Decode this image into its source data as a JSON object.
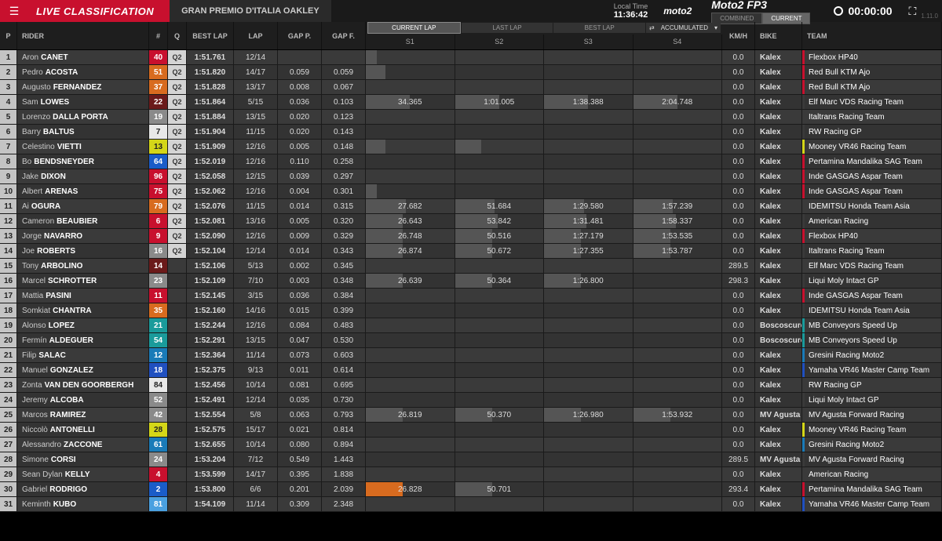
{
  "header": {
    "title": "LIVE CLASSIFICATION",
    "event": "GRAN PREMIO D'ITALIA OAKLEY",
    "local_time_label": "Local Time",
    "local_time": "11:36:42",
    "category_logo": "moto2",
    "session": "Moto2 FP3",
    "toggle": {
      "combined": "COMBINED",
      "current": "CURRENT"
    },
    "countdown": "00:00:00",
    "version": "1.11.0"
  },
  "columns": {
    "p": "P",
    "rider": "RIDER",
    "num": "#",
    "q": "Q",
    "bestlap": "BEST LAP",
    "lap": "LAP",
    "gapp": "GAP P.",
    "gapf": "GAP F.",
    "tabs": {
      "current": "CURRENT LAP",
      "last": "LAST LAP",
      "best": "BEST LAP"
    },
    "acc_label": "ACCUMULATED",
    "s1": "S1",
    "s2": "S2",
    "s3": "S3",
    "s4": "S4",
    "kmh": "Km/h",
    "bike": "BIKE",
    "team": "TEAM"
  },
  "num_colors": {
    "red": "#c8102e",
    "orange": "#d86b1f",
    "darkred": "#6b1a1a",
    "grey": "#8a8a8a",
    "white": "#e8e8e8",
    "yellow": "#d4d618",
    "blue": "#1a5cc8",
    "teal": "#1a9b9b",
    "tealblue": "#1a7bb8",
    "blue2": "#2050c0",
    "lightblue": "#4aa0e0"
  },
  "rows": [
    {
      "p": 1,
      "first": "Aron",
      "last": "CANET",
      "num": 40,
      "nc": "red",
      "q": "Q2",
      "best": "1:51.761",
      "lap": "12/14",
      "gp": "",
      "gf": "",
      "s": [
        {
          "b": 12
        },
        {
          "b": 0
        },
        {
          "b": 0
        },
        {
          "b": 0
        }
      ],
      "kmh": "0.0",
      "bike": "Kalex",
      "team": "Flexbox HP40",
      "tc": "#c8102e"
    },
    {
      "p": 2,
      "first": "Pedro",
      "last": "ACOSTA",
      "num": 51,
      "nc": "orange",
      "q": "Q2",
      "best": "1:51.820",
      "lap": "14/17",
      "gp": "0.059",
      "gf": "0.059",
      "s": [
        {
          "b": 22
        },
        {
          "b": 0
        },
        {
          "b": 0
        },
        {
          "b": 0
        }
      ],
      "kmh": "0.0",
      "bike": "Kalex",
      "team": "Red Bull KTM Ajo",
      "tc": "#c8102e"
    },
    {
      "p": 3,
      "first": "Augusto",
      "last": "FERNANDEZ",
      "num": 37,
      "nc": "orange",
      "q": "Q2",
      "best": "1:51.828",
      "lap": "13/17",
      "gp": "0.008",
      "gf": "0.067",
      "s": [
        {
          "b": 0
        },
        {
          "b": 0
        },
        {
          "b": 0
        },
        {
          "b": 0
        }
      ],
      "kmh": "0.0",
      "bike": "Kalex",
      "team": "Red Bull KTM Ajo",
      "tc": "#c8102e"
    },
    {
      "p": 4,
      "first": "Sam",
      "last": "LOWES",
      "num": 22,
      "nc": "darkred",
      "q": "Q2",
      "best": "1:51.864",
      "lap": "5/15",
      "gp": "0.036",
      "gf": "0.103",
      "s": [
        {
          "v": "34.365",
          "b": 50
        },
        {
          "v": "1:01.005",
          "b": 50
        },
        {
          "v": "1:38.388",
          "b": 50
        },
        {
          "v": "2:04.748",
          "b": 50
        }
      ],
      "kmh": "0.0",
      "bike": "Kalex",
      "team": "Elf Marc VDS Racing Team",
      "tc": "#3a3a3a"
    },
    {
      "p": 5,
      "first": "Lorenzo",
      "last": "DALLA PORTA",
      "num": 19,
      "nc": "grey",
      "q": "Q2",
      "best": "1:51.884",
      "lap": "13/15",
      "gp": "0.020",
      "gf": "0.123",
      "s": [
        {
          "b": 0
        },
        {
          "b": 0
        },
        {
          "b": 0
        },
        {
          "b": 0
        }
      ],
      "kmh": "0.0",
      "bike": "Kalex",
      "team": "Italtrans Racing Team",
      "tc": "#3a3a3a"
    },
    {
      "p": 6,
      "first": "Barry",
      "last": "BALTUS",
      "num": 7,
      "nc": "white",
      "numtext": "#222",
      "q": "Q2",
      "best": "1:51.904",
      "lap": "11/15",
      "gp": "0.020",
      "gf": "0.143",
      "s": [
        {
          "b": 0
        },
        {
          "b": 0
        },
        {
          "b": 0
        },
        {
          "b": 0
        }
      ],
      "kmh": "0.0",
      "bike": "Kalex",
      "team": "RW Racing GP",
      "tc": "#3a3a3a"
    },
    {
      "p": 7,
      "first": "Celestino",
      "last": "VIETTI",
      "num": 13,
      "nc": "yellow",
      "numtext": "#222",
      "q": "Q2",
      "best": "1:51.909",
      "lap": "12/16",
      "gp": "0.005",
      "gf": "0.148",
      "s": [
        {
          "b": 22
        },
        {
          "b": 30
        },
        {
          "b": 0
        },
        {
          "b": 0
        }
      ],
      "kmh": "0.0",
      "bike": "Kalex",
      "team": "Mooney VR46 Racing Team",
      "tc": "#d4d618"
    },
    {
      "p": 8,
      "first": "Bo",
      "last": "BENDSNEYDER",
      "num": 64,
      "nc": "blue",
      "q": "Q2",
      "best": "1:52.019",
      "lap": "12/16",
      "gp": "0.110",
      "gf": "0.258",
      "s": [
        {
          "b": 0
        },
        {
          "b": 0
        },
        {
          "b": 0
        },
        {
          "b": 0
        }
      ],
      "kmh": "0.0",
      "bike": "Kalex",
      "team": "Pertamina Mandalika SAG Team",
      "tc": "#c8102e"
    },
    {
      "p": 9,
      "first": "Jake",
      "last": "DIXON",
      "num": 96,
      "nc": "red",
      "q": "Q2",
      "best": "1:52.058",
      "lap": "12/15",
      "gp": "0.039",
      "gf": "0.297",
      "s": [
        {
          "b": 0
        },
        {
          "b": 0
        },
        {
          "b": 0
        },
        {
          "b": 0
        }
      ],
      "kmh": "0.0",
      "bike": "Kalex",
      "team": "Inde GASGAS Aspar Team",
      "tc": "#c8102e"
    },
    {
      "p": 10,
      "first": "Albert",
      "last": "ARENAS",
      "num": 75,
      "nc": "red",
      "q": "Q2",
      "best": "1:52.062",
      "lap": "12/16",
      "gp": "0.004",
      "gf": "0.301",
      "s": [
        {
          "b": 12
        },
        {
          "b": 0
        },
        {
          "b": 0
        },
        {
          "b": 0
        }
      ],
      "kmh": "0.0",
      "bike": "Kalex",
      "team": "Inde GASGAS Aspar Team",
      "tc": "#c8102e"
    },
    {
      "p": 11,
      "first": "Ai",
      "last": "OGURA",
      "num": 79,
      "nc": "orange",
      "q": "Q2",
      "best": "1:52.076",
      "lap": "11/15",
      "gp": "0.014",
      "gf": "0.315",
      "s": [
        {
          "v": "27.682",
          "b": 45
        },
        {
          "v": "51.684",
          "b": 45
        },
        {
          "v": "1:29.580",
          "b": 45
        },
        {
          "v": "1:57.239",
          "b": 45
        }
      ],
      "kmh": "0.0",
      "bike": "Kalex",
      "team": "IDEMITSU Honda Team Asia",
      "tc": "#3a3a3a"
    },
    {
      "p": 12,
      "first": "Cameron",
      "last": "BEAUBIER",
      "num": 6,
      "nc": "red",
      "q": "Q2",
      "best": "1:52.081",
      "lap": "13/16",
      "gp": "0.005",
      "gf": "0.320",
      "s": [
        {
          "v": "26.643",
          "b": 42
        },
        {
          "v": "53.842",
          "b": 48
        },
        {
          "v": "1:31.481",
          "b": 48
        },
        {
          "v": "1:58.337",
          "b": 48
        }
      ],
      "kmh": "0.0",
      "bike": "Kalex",
      "team": "American Racing",
      "tc": "#3a3a3a"
    },
    {
      "p": 13,
      "first": "Jorge",
      "last": "NAVARRO",
      "num": 9,
      "nc": "red",
      "q": "Q2",
      "best": "1:52.090",
      "lap": "12/16",
      "gp": "0.009",
      "gf": "0.329",
      "s": [
        {
          "v": "26.748",
          "b": 42
        },
        {
          "v": "50.516",
          "b": 42
        },
        {
          "v": "1:27.179",
          "b": 42
        },
        {
          "v": "1:53.535",
          "b": 42
        }
      ],
      "kmh": "0.0",
      "bike": "Kalex",
      "team": "Flexbox HP40",
      "tc": "#c8102e"
    },
    {
      "p": 14,
      "first": "Joe",
      "last": "ROBERTS",
      "num": 16,
      "nc": "grey",
      "q": "Q2",
      "best": "1:52.104",
      "lap": "12/14",
      "gp": "0.014",
      "gf": "0.343",
      "s": [
        {
          "v": "26.874",
          "b": 42
        },
        {
          "v": "50.672",
          "b": 42
        },
        {
          "v": "1:27.355",
          "b": 42
        },
        {
          "v": "1:53.787",
          "b": 42
        }
      ],
      "kmh": "0.0",
      "bike": "Kalex",
      "team": "Italtrans Racing Team",
      "tc": "#3a3a3a"
    },
    {
      "p": 15,
      "first": "Tony",
      "last": "ARBOLINO",
      "num": 14,
      "nc": "darkred",
      "q": "",
      "best": "1:52.106",
      "lap": "5/13",
      "gp": "0.002",
      "gf": "0.345",
      "s": [
        {
          "b": 0
        },
        {
          "b": 0
        },
        {
          "b": 0
        },
        {
          "b": 0
        }
      ],
      "kmh": "289.5",
      "bike": "Kalex",
      "team": "Elf Marc VDS Racing Team",
      "tc": "#3a3a3a"
    },
    {
      "p": 16,
      "first": "Marcel",
      "last": "SCHROTTER",
      "num": 23,
      "nc": "grey",
      "q": "",
      "best": "1:52.109",
      "lap": "7/10",
      "gp": "0.003",
      "gf": "0.348",
      "s": [
        {
          "v": "26.639",
          "b": 42
        },
        {
          "v": "50.364",
          "b": 42
        },
        {
          "v": "1:26.800",
          "b": 42
        },
        {
          "b": 0
        }
      ],
      "kmh": "298.3",
      "bike": "Kalex",
      "team": "Liqui Moly Intact GP",
      "tc": "#3a3a3a"
    },
    {
      "p": 17,
      "first": "Mattia",
      "last": "PASINI",
      "num": 11,
      "nc": "red",
      "q": "",
      "best": "1:52.145",
      "lap": "3/15",
      "gp": "0.036",
      "gf": "0.384",
      "s": [
        {
          "b": 0
        },
        {
          "b": 0
        },
        {
          "b": 0
        },
        {
          "b": 0
        }
      ],
      "kmh": "0.0",
      "bike": "Kalex",
      "team": "Inde GASGAS Aspar Team",
      "tc": "#c8102e"
    },
    {
      "p": 18,
      "first": "Somkiat",
      "last": "CHANTRA",
      "num": 35,
      "nc": "orange",
      "q": "",
      "best": "1:52.160",
      "lap": "14/16",
      "gp": "0.015",
      "gf": "0.399",
      "s": [
        {
          "b": 0
        },
        {
          "b": 0
        },
        {
          "b": 0
        },
        {
          "b": 0
        }
      ],
      "kmh": "0.0",
      "bike": "Kalex",
      "team": "IDEMITSU Honda Team Asia",
      "tc": "#3a3a3a"
    },
    {
      "p": 19,
      "first": "Alonso",
      "last": "LOPEZ",
      "num": 21,
      "nc": "teal",
      "q": "",
      "best": "1:52.244",
      "lap": "12/16",
      "gp": "0.084",
      "gf": "0.483",
      "s": [
        {
          "b": 0
        },
        {
          "b": 0
        },
        {
          "b": 0
        },
        {
          "b": 0
        }
      ],
      "kmh": "0.0",
      "bike": "Boscoscuro",
      "team": "MB Conveyors Speed Up",
      "tc": "#1a9b9b"
    },
    {
      "p": 20,
      "first": "Fermín",
      "last": "ALDEGUER",
      "num": 54,
      "nc": "teal",
      "q": "",
      "best": "1:52.291",
      "lap": "13/15",
      "gp": "0.047",
      "gf": "0.530",
      "s": [
        {
          "b": 0
        },
        {
          "b": 0
        },
        {
          "b": 0
        },
        {
          "b": 0
        }
      ],
      "kmh": "0.0",
      "bike": "Boscoscuro",
      "team": "MB Conveyors Speed Up",
      "tc": "#1a9b9b"
    },
    {
      "p": 21,
      "first": "Filip",
      "last": "SALAC",
      "num": 12,
      "nc": "tealblue",
      "q": "",
      "best": "1:52.364",
      "lap": "11/14",
      "gp": "0.073",
      "gf": "0.603",
      "s": [
        {
          "b": 0
        },
        {
          "b": 0
        },
        {
          "b": 0
        },
        {
          "b": 0
        }
      ],
      "kmh": "0.0",
      "bike": "Kalex",
      "team": "Gresini Racing Moto2",
      "tc": "#1a7bb8"
    },
    {
      "p": 22,
      "first": "Manuel",
      "last": "GONZALEZ",
      "num": 18,
      "nc": "blue2",
      "q": "",
      "best": "1:52.375",
      "lap": "9/13",
      "gp": "0.011",
      "gf": "0.614",
      "s": [
        {
          "b": 0
        },
        {
          "b": 0
        },
        {
          "b": 0
        },
        {
          "b": 0
        }
      ],
      "kmh": "0.0",
      "bike": "Kalex",
      "team": "Yamaha VR46 Master Camp Team",
      "tc": "#2050c0"
    },
    {
      "p": 23,
      "first": "Zonta",
      "last": "VAN DEN GOORBERGH",
      "num": 84,
      "nc": "white",
      "numtext": "#222",
      "q": "",
      "best": "1:52.456",
      "lap": "10/14",
      "gp": "0.081",
      "gf": "0.695",
      "s": [
        {
          "b": 0
        },
        {
          "b": 0
        },
        {
          "b": 0
        },
        {
          "b": 0
        }
      ],
      "kmh": "0.0",
      "bike": "Kalex",
      "team": "RW Racing GP",
      "tc": "#3a3a3a"
    },
    {
      "p": 24,
      "first": "Jeremy",
      "last": "ALCOBA",
      "num": 52,
      "nc": "grey",
      "q": "",
      "best": "1:52.491",
      "lap": "12/14",
      "gp": "0.035",
      "gf": "0.730",
      "s": [
        {
          "b": 0
        },
        {
          "b": 0
        },
        {
          "b": 0
        },
        {
          "b": 0
        }
      ],
      "kmh": "0.0",
      "bike": "Kalex",
      "team": "Liqui Moly Intact GP",
      "tc": "#3a3a3a"
    },
    {
      "p": 25,
      "first": "Marcos",
      "last": "RAMIREZ",
      "num": 42,
      "nc": "grey",
      "q": "",
      "best": "1:52.554",
      "lap": "5/8",
      "gp": "0.063",
      "gf": "0.793",
      "s": [
        {
          "v": "26.819",
          "b": 42
        },
        {
          "v": "50.370",
          "b": 42
        },
        {
          "v": "1:26.980",
          "b": 42
        },
        {
          "v": "1:53.932",
          "b": 42
        }
      ],
      "kmh": "0.0",
      "bike": "MV Agusta",
      "team": "MV Agusta Forward Racing",
      "tc": "#3a3a3a"
    },
    {
      "p": 26,
      "first": "Niccolò",
      "last": "ANTONELLI",
      "num": 28,
      "nc": "yellow",
      "numtext": "#222",
      "q": "",
      "best": "1:52.575",
      "lap": "15/17",
      "gp": "0.021",
      "gf": "0.814",
      "s": [
        {
          "b": 0
        },
        {
          "b": 0
        },
        {
          "b": 0
        },
        {
          "b": 0
        }
      ],
      "kmh": "0.0",
      "bike": "Kalex",
      "team": "Mooney VR46 Racing Team",
      "tc": "#d4d618"
    },
    {
      "p": 27,
      "first": "Alessandro",
      "last": "ZACCONE",
      "num": 61,
      "nc": "tealblue",
      "q": "",
      "best": "1:52.655",
      "lap": "10/14",
      "gp": "0.080",
      "gf": "0.894",
      "s": [
        {
          "b": 0
        },
        {
          "b": 0
        },
        {
          "b": 0
        },
        {
          "b": 0
        }
      ],
      "kmh": "0.0",
      "bike": "Kalex",
      "team": "Gresini Racing Moto2",
      "tc": "#1a7bb8"
    },
    {
      "p": 28,
      "first": "Simone",
      "last": "CORSI",
      "status": "P",
      "num": 24,
      "nc": "grey",
      "q": "",
      "best": "1:53.204",
      "lap": "7/12",
      "gp": "0.549",
      "gf": "1.443",
      "s": [
        {
          "b": 0
        },
        {
          "b": 0
        },
        {
          "b": 0
        },
        {
          "b": 0
        }
      ],
      "kmh": "289.5",
      "bike": "MV Agusta",
      "team": "MV Agusta Forward Racing",
      "tc": "#3a3a3a"
    },
    {
      "p": 29,
      "first": "Sean Dylan",
      "last": "KELLY",
      "num": 4,
      "nc": "red",
      "q": "",
      "best": "1:53.599",
      "lap": "14/17",
      "gp": "0.395",
      "gf": "1.838",
      "s": [
        {
          "b": 0
        },
        {
          "b": 0
        },
        {
          "b": 0
        },
        {
          "b": 0
        }
      ],
      "kmh": "0.0",
      "bike": "Kalex",
      "team": "American Racing",
      "tc": "#3a3a3a"
    },
    {
      "p": 30,
      "first": "Gabriel",
      "last": "RODRIGO",
      "num": 2,
      "nc": "blue",
      "q": "",
      "best": "1:53.800",
      "lap": "6/6",
      "gp": "0.201",
      "gf": "2.039",
      "s": [
        {
          "v": "26.828",
          "b": 42,
          "o": true
        },
        {
          "v": "50.701",
          "b": 42
        },
        {
          "b": 0
        },
        {
          "b": 0
        }
      ],
      "kmh": "293.4",
      "bike": "Kalex",
      "team": "Pertamina Mandalika SAG Team",
      "tc": "#c8102e"
    },
    {
      "p": 31,
      "first": "Keminth",
      "last": "KUBO",
      "num": 81,
      "nc": "lightblue",
      "q": "",
      "best": "1:54.109",
      "lap": "11/14",
      "gp": "0.309",
      "gf": "2.348",
      "s": [
        {
          "b": 0
        },
        {
          "b": 0
        },
        {
          "b": 0
        },
        {
          "b": 0
        }
      ],
      "kmh": "0.0",
      "bike": "Kalex",
      "team": "Yamaha VR46 Master Camp Team",
      "tc": "#2050c0"
    }
  ]
}
